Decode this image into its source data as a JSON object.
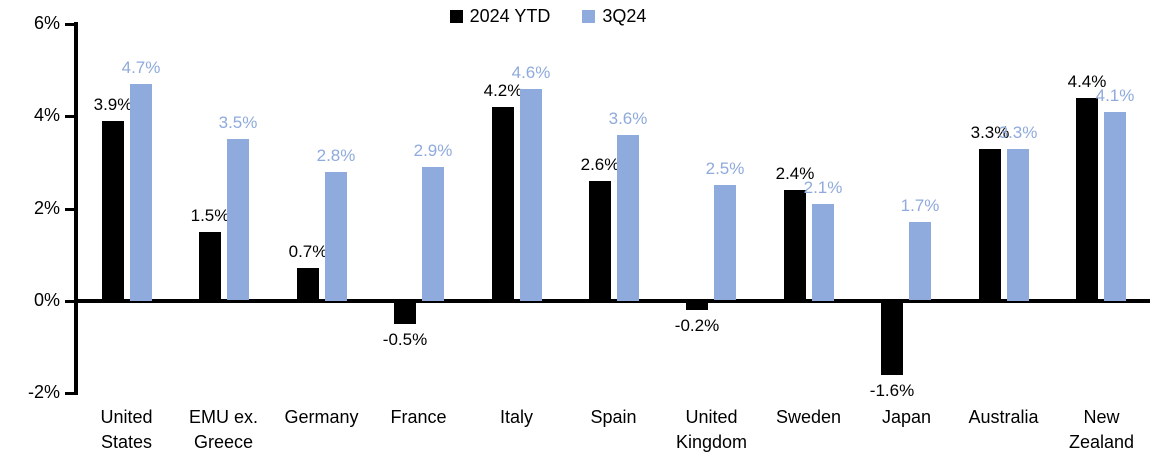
{
  "chart_data": {
    "type": "bar",
    "title": "",
    "background": "#FFFFFF",
    "categories": [
      "United\nStates",
      "EMU ex.\nGreece",
      "Germany",
      "France",
      "Italy",
      "Spain",
      "United\nKingdom",
      "Sweden",
      "Japan",
      "Australia",
      "New\nZealand"
    ],
    "series": [
      {
        "name": "2024 YTD",
        "color": "#000000",
        "values": [
          3.9,
          1.5,
          0.7,
          -0.5,
          4.2,
          2.6,
          -0.2,
          2.4,
          -1.6,
          3.3,
          4.4
        ],
        "labels": [
          "3.9%",
          "1.5%",
          "0.7%",
          "-0.5%",
          "4.2%",
          "2.6%",
          "-0.2%",
          "2.4%",
          "-1.6%",
          "3.3%",
          "4.4%"
        ]
      },
      {
        "name": "3Q24",
        "color": "#8FAADC",
        "values": [
          4.7,
          3.5,
          2.8,
          2.9,
          4.6,
          3.6,
          2.5,
          2.1,
          1.7,
          3.3,
          4.1
        ],
        "labels": [
          "4.7%",
          "3.5%",
          "2.8%",
          "2.9%",
          "4.6%",
          "3.6%",
          "2.5%",
          "2.1%",
          "1.7%",
          "3.3%",
          "4.1%"
        ]
      }
    ],
    "y_axis": {
      "min": -2,
      "max": 6,
      "step": 2,
      "tick_labels": [
        "6%",
        "4%",
        "2%",
        "0%",
        "-2%"
      ],
      "unit": "%"
    },
    "legend": {
      "position": "top-center",
      "entries": [
        "2024 YTD",
        "3Q24"
      ]
    },
    "grid": false,
    "axis_color": "#000000"
  }
}
